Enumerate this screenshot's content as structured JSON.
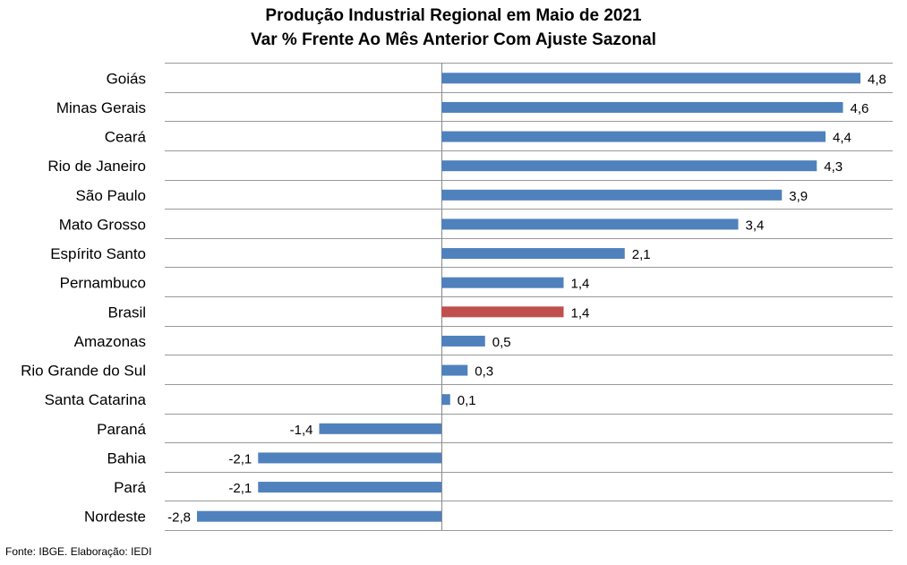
{
  "chart_data": {
    "type": "bar",
    "orientation": "horizontal",
    "title": "Produção Industrial Regional em Maio de 2021",
    "subtitle": "Var % Frente Ao Mês Anterior Com Ajuste Sazonal",
    "categories": [
      "Goiás",
      "Minas Gerais",
      "Ceará",
      "Rio de Janeiro",
      "São Paulo",
      "Mato Grosso",
      "Espírito Santo",
      "Pernambuco",
      "Brasil",
      "Amazonas",
      "Rio Grande do Sul",
      "Santa Catarina",
      "Paraná",
      "Bahia",
      "Pará",
      "Nordeste"
    ],
    "values": [
      4.8,
      4.6,
      4.4,
      4.3,
      3.9,
      3.4,
      2.1,
      1.4,
      1.4,
      0.5,
      0.3,
      0.1,
      -1.4,
      -2.1,
      -2.1,
      -2.8
    ],
    "value_labels": [
      "4,8",
      "4,6",
      "4,4",
      "4,3",
      "3,9",
      "3,4",
      "2,1",
      "1,4",
      "1,4",
      "0,5",
      "0,3",
      "0,1",
      "-1,4",
      "-2,1",
      "-2,1",
      "-2,8"
    ],
    "highlight_category": "Brasil",
    "colors": {
      "default": "#4F81BD",
      "highlight": "#C0504D",
      "grid": "#999999"
    },
    "xlim": [
      -3.2,
      5.2
    ],
    "grid": true,
    "xlabel": "",
    "ylabel": ""
  },
  "source_note": "Fonte: IBGE. Elaboração: IEDI"
}
